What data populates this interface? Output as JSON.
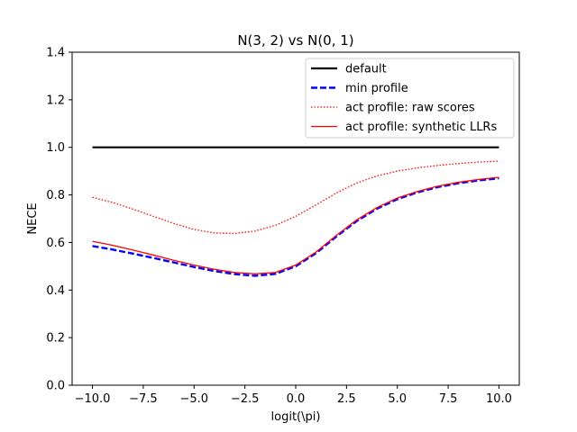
{
  "chart_data": {
    "type": "line",
    "title": "N(3, 2) vs N(0, 1)",
    "xlabel": "logit(\\pi)",
    "ylabel": "NECE",
    "xlim": [
      -11,
      11
    ],
    "ylim": [
      0,
      1.4
    ],
    "xticks": [
      -10.0,
      -7.5,
      -5.0,
      -2.5,
      0.0,
      2.5,
      5.0,
      7.5,
      10.0
    ],
    "xtick_labels": [
      "−10.0",
      "−7.5",
      "−5.0",
      "−2.5",
      "0.0",
      "2.5",
      "5.0",
      "7.5",
      "10.0"
    ],
    "yticks": [
      0.0,
      0.2,
      0.4,
      0.6,
      0.8,
      1.0,
      1.2,
      1.4
    ],
    "ytick_labels": [
      "0.0",
      "0.2",
      "0.4",
      "0.6",
      "0.8",
      "1.0",
      "1.2",
      "1.4"
    ],
    "grid": false,
    "legend_position": "top-right",
    "x": [
      -10,
      -9,
      -8,
      -7,
      -6,
      -5,
      -4,
      -3,
      -2,
      -1,
      0,
      1,
      2,
      3,
      4,
      5,
      6,
      7,
      8,
      9,
      10
    ],
    "series": [
      {
        "name": "default",
        "color": "#000000",
        "style": "solid",
        "width": 2.2,
        "values": [
          1.0,
          1.0,
          1.0,
          1.0,
          1.0,
          1.0,
          1.0,
          1.0,
          1.0,
          1.0,
          1.0,
          1.0,
          1.0,
          1.0,
          1.0,
          1.0,
          1.0,
          1.0,
          1.0,
          1.0,
          1.0
        ]
      },
      {
        "name": "min profile",
        "color": "#0000ff",
        "style": "dashed",
        "width": 2.4,
        "values": [
          0.585,
          0.57,
          0.553,
          0.535,
          0.516,
          0.497,
          0.48,
          0.467,
          0.46,
          0.468,
          0.5,
          0.555,
          0.625,
          0.69,
          0.742,
          0.782,
          0.811,
          0.833,
          0.849,
          0.861,
          0.87
        ]
      },
      {
        "name": "act profile: raw scores",
        "color": "#ff0000",
        "style": "dotted",
        "width": 1.3,
        "values": [
          0.79,
          0.768,
          0.74,
          0.71,
          0.68,
          0.655,
          0.64,
          0.638,
          0.648,
          0.672,
          0.71,
          0.758,
          0.808,
          0.85,
          0.88,
          0.9,
          0.914,
          0.924,
          0.932,
          0.938,
          0.942
        ]
      },
      {
        "name": "act profile: synthetic LLRs",
        "color": "#ff0000",
        "style": "solid",
        "width": 1.3,
        "values": [
          0.605,
          0.588,
          0.568,
          0.547,
          0.525,
          0.505,
          0.487,
          0.474,
          0.468,
          0.474,
          0.505,
          0.56,
          0.63,
          0.695,
          0.747,
          0.787,
          0.815,
          0.837,
          0.853,
          0.865,
          0.874
        ]
      }
    ]
  }
}
